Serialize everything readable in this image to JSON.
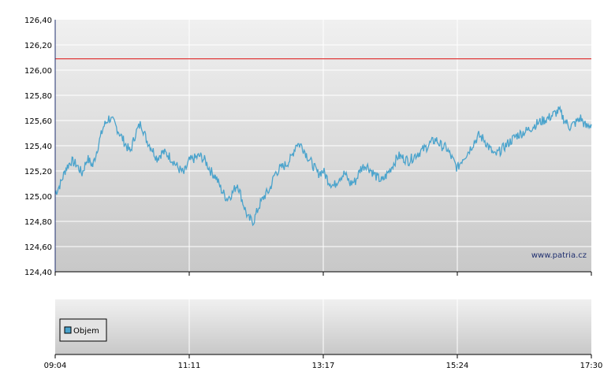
{
  "watermark": "www.patria.cz",
  "chart_data": {
    "type": "line",
    "ylim": [
      124.4,
      126.4
    ],
    "y_ticks": [
      "124,40",
      "124,60",
      "124,80",
      "125,00",
      "125,20",
      "125,40",
      "125,60",
      "125,80",
      "126,00",
      "126,20",
      "126,40"
    ],
    "x_ticks": [
      "09:04",
      "11:11",
      "13:17",
      "15:24",
      "17:30"
    ],
    "reference_line": {
      "value": 126.09,
      "color": "#e03a3a"
    },
    "series": [
      {
        "color": "#4aa3cc",
        "x": [
          0,
          0.01,
          0.02,
          0.03,
          0.04,
          0.05,
          0.06,
          0.07,
          0.08,
          0.09,
          0.1,
          0.11,
          0.12,
          0.13,
          0.14,
          0.15,
          0.16,
          0.17,
          0.18,
          0.19,
          0.2,
          0.21,
          0.22,
          0.23,
          0.24,
          0.25,
          0.26,
          0.27,
          0.28,
          0.29,
          0.3,
          0.31,
          0.32,
          0.33,
          0.34,
          0.35,
          0.36,
          0.37,
          0.38,
          0.39,
          0.4,
          0.41,
          0.42,
          0.43,
          0.44,
          0.45,
          0.46,
          0.47,
          0.48,
          0.49,
          0.5,
          0.51,
          0.52,
          0.53,
          0.54,
          0.55,
          0.56,
          0.57,
          0.58,
          0.59,
          0.6,
          0.61,
          0.62,
          0.63,
          0.64,
          0.65,
          0.66,
          0.67,
          0.68,
          0.69,
          0.7,
          0.71,
          0.72,
          0.73,
          0.74,
          0.75,
          0.76,
          0.77,
          0.78,
          0.79,
          0.8,
          0.81,
          0.82,
          0.83,
          0.84,
          0.85,
          0.86,
          0.87,
          0.88,
          0.89,
          0.9,
          0.91,
          0.92,
          0.93,
          0.94,
          0.95,
          0.96,
          0.97,
          0.98,
          0.99,
          1.0
        ],
        "values": [
          125.02,
          125.1,
          125.22,
          125.28,
          125.25,
          125.18,
          125.3,
          125.24,
          125.4,
          125.55,
          125.62,
          125.58,
          125.5,
          125.42,
          125.35,
          125.5,
          125.58,
          125.45,
          125.38,
          125.3,
          125.35,
          125.33,
          125.28,
          125.22,
          125.18,
          125.28,
          125.3,
          125.32,
          125.28,
          125.2,
          125.15,
          125.05,
          124.98,
          125.02,
          125.1,
          124.95,
          124.82,
          124.8,
          124.92,
          125.0,
          125.05,
          125.18,
          125.22,
          125.25,
          125.3,
          125.42,
          125.4,
          125.32,
          125.25,
          125.18,
          125.2,
          125.12,
          125.08,
          125.15,
          125.18,
          125.1,
          125.12,
          125.22,
          125.25,
          125.2,
          125.15,
          125.12,
          125.18,
          125.25,
          125.32,
          125.3,
          125.28,
          125.32,
          125.35,
          125.38,
          125.42,
          125.45,
          125.4,
          125.38,
          125.3,
          125.22,
          125.3,
          125.35,
          125.42,
          125.48,
          125.45,
          125.38,
          125.32,
          125.36,
          125.4,
          125.44,
          125.48,
          125.5,
          125.52,
          125.55,
          125.58,
          125.6,
          125.62,
          125.65,
          125.68,
          125.6,
          125.55,
          125.58,
          125.62,
          125.55,
          125.57
        ]
      }
    ],
    "legend": {
      "label": "Objem",
      "position": "bottom-left",
      "color": "#4aa3cc"
    }
  }
}
